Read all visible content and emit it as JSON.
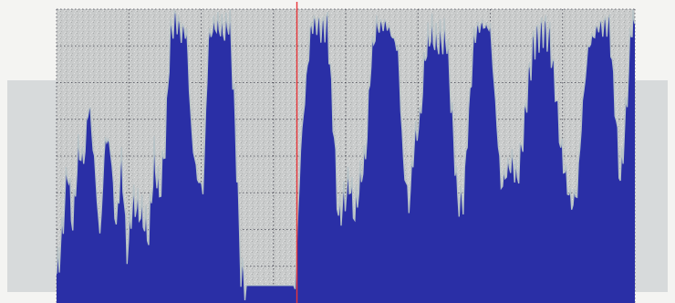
{
  "chart_data": {
    "type": "area",
    "title": "",
    "xlabel": "",
    "ylabel": "",
    "grid": true,
    "legend": "none",
    "xlim": [
      0,
      320
    ],
    "ylim": [
      0,
      100
    ],
    "x_divisions": 8,
    "y_divisions": 8,
    "cursor_x": 133,
    "colors": {
      "fill": "#2a2fa6",
      "trace": "#b6c2c6",
      "plot_background": "#c9cbcb",
      "grid": "#1c1c2a",
      "cursor": "#e8363a",
      "side_panel": "#d7dadb"
    },
    "series": [
      {
        "x": [
          0,
          3,
          6,
          9,
          12,
          15,
          18,
          21,
          24,
          27,
          30,
          33,
          36,
          39,
          42,
          45,
          48,
          51,
          54,
          57,
          60,
          63,
          66,
          69,
          72,
          75,
          78,
          81,
          84,
          87,
          90,
          93,
          96,
          99,
          102,
          105,
          108,
          111,
          114,
          117,
          120,
          123,
          126,
          129,
          132,
          135,
          138,
          141,
          144,
          147,
          150,
          153,
          156,
          159,
          162,
          165,
          168,
          171,
          174,
          177,
          180,
          183,
          186,
          189,
          192,
          195,
          198,
          201,
          204,
          207,
          210,
          213,
          216,
          219,
          222,
          225,
          228,
          231,
          234,
          237,
          240,
          243,
          246,
          249,
          252,
          255,
          258,
          261,
          264,
          267,
          270,
          273,
          276,
          279,
          282,
          285,
          288,
          291,
          294,
          297,
          300,
          303,
          306,
          309,
          312,
          315,
          318,
          320
        ],
        "values": [
          10,
          23,
          47,
          27,
          52,
          49,
          69,
          48,
          23,
          57,
          52,
          26,
          50,
          17,
          35,
          33,
          29,
          24,
          50,
          37,
          55,
          92,
          97,
          93,
          92,
          56,
          43,
          38,
          90,
          95,
          94,
          93,
          97,
          59,
          12,
          6,
          6,
          6,
          6,
          6,
          6,
          6,
          6,
          6,
          6,
          52,
          76,
          95,
          95,
          94,
          95,
          64,
          30,
          35,
          42,
          31,
          42,
          51,
          84,
          94,
          95,
          95,
          90,
          87,
          48,
          33,
          56,
          62,
          85,
          93,
          89,
          90,
          91,
          63,
          35,
          36,
          64,
          91,
          95,
          94,
          94,
          68,
          40,
          45,
          49,
          42,
          57,
          76,
          89,
          92,
          94,
          90,
          74,
          54,
          42,
          34,
          38,
          67,
          87,
          91,
          94,
          95,
          95,
          68,
          42,
          64,
          95,
          95
        ]
      }
    ]
  }
}
